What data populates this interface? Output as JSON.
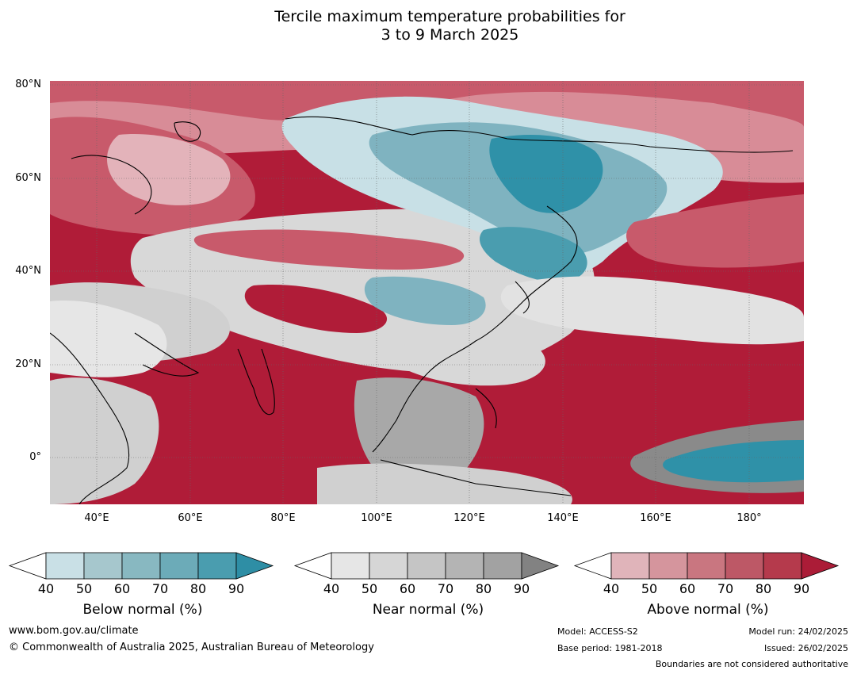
{
  "title_line1": "Tercile maximum temperature probabilities for",
  "title_line2": "3 to 9 March 2025",
  "map": {
    "lat_labels": [
      "80°N",
      "60°N",
      "40°N",
      "20°N",
      "0°"
    ],
    "lon_labels": [
      "40°E",
      "60°E",
      "80°E",
      "100°E",
      "120°E",
      "140°E",
      "160°E",
      "180°"
    ],
    "colors": {
      "above90": "#b01c38",
      "above70": "#c85a6b",
      "above50": "#dc9aa3",
      "near": "#d8d8d8",
      "near_dark": "#a8a8a8",
      "below50": "#c8e0e6",
      "below70": "#7fb3c0",
      "below90": "#2f91a8"
    }
  },
  "colorbars": [
    {
      "label": "Below normal (%)",
      "ticks": [
        "40",
        "50",
        "60",
        "70",
        "80",
        "90"
      ],
      "colors": [
        "#ffffff",
        "#c9e0e6",
        "#a6c7cd",
        "#88b8c1",
        "#6cabb8",
        "#4a9daf",
        "#2e8ea5"
      ]
    },
    {
      "label": "Near normal (%)",
      "ticks": [
        "40",
        "50",
        "60",
        "70",
        "80",
        "90"
      ],
      "colors": [
        "#ffffff",
        "#e6e6e6",
        "#d6d6d6",
        "#c5c5c5",
        "#b4b4b4",
        "#a2a2a2",
        "#828282"
      ]
    },
    {
      "label": "Above normal (%)",
      "ticks": [
        "40",
        "50",
        "60",
        "70",
        "80",
        "90"
      ],
      "colors": [
        "#ffffff",
        "#e0b4ba",
        "#d5959d",
        "#c97680",
        "#bd5866",
        "#b53a4c",
        "#ab1c37"
      ]
    }
  ],
  "footer": {
    "website": "www.bom.gov.au/climate",
    "copyright": "© Commonwealth of Australia 2025, Australian Bureau of Meteorology",
    "model": "Model: ACCESS-S2",
    "base_period": "Base period: 1981-2018",
    "model_run": "Model run: 24/02/2025",
    "issued": "Issued: 26/02/2025",
    "boundaries": "Boundaries are not considered authoritative"
  }
}
